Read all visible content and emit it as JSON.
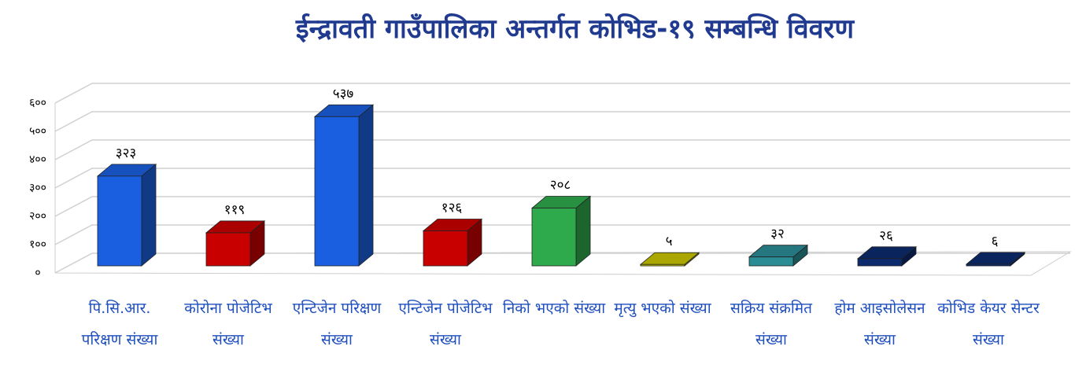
{
  "chart_data": {
    "type": "bar",
    "title": "ईन्द्रावती गाउँपालिका अन्तर्गत कोभिड-१९ सम्बन्धि  विवरण",
    "categories": [
      "पि.सि.आर. परिक्षण संख्या",
      "कोरोना पोजेटिभ संख्या",
      "एन्टिजेन परिक्षण संख्या",
      "एन्टिजेन पोजेटिभ संख्या",
      "निको भएको संख्या",
      "मृत्यु भएको संख्या",
      "सक्रिय संक्रमित संख्या",
      "होम आइसोलेसन संख्या",
      "कोभिड केयर सेन्टर संख्या"
    ],
    "values": [
      323,
      119,
      537,
      126,
      208,
      5,
      32,
      26,
      6
    ],
    "value_labels": [
      "३२३",
      "११९",
      "५३७",
      "१२६",
      "२०८",
      "५",
      "३२",
      "२६",
      "६"
    ],
    "colors": [
      "#1a5fe0",
      "#c80000",
      "#1a5fe0",
      "#c80000",
      "#2eaa4c",
      "#c8c400",
      "#2a8c94",
      "#0c2a6e",
      "#0c2a6e"
    ],
    "ylim": [
      0,
      600
    ],
    "yticks": [
      {
        "value": 0,
        "label": "०"
      },
      {
        "value": 100,
        "label": "१००"
      },
      {
        "value": 200,
        "label": "२००"
      },
      {
        "value": 300,
        "label": "३००"
      },
      {
        "value": 400,
        "label": "४००"
      },
      {
        "value": 500,
        "label": "५००"
      },
      {
        "value": 600,
        "label": "६००"
      }
    ],
    "grid": true
  }
}
